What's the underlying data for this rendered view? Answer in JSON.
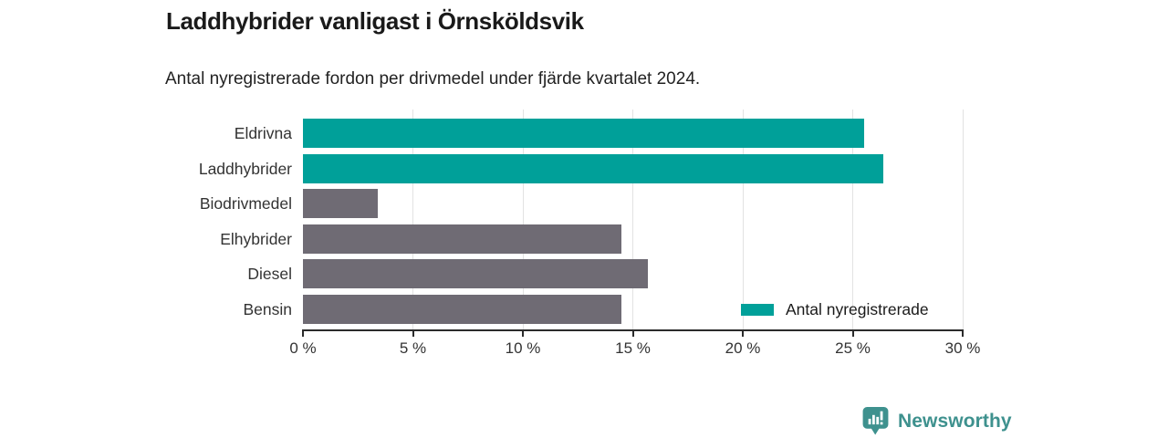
{
  "header": {
    "title": "Laddhybrider vanligast i Örnsköldsvik",
    "subtitle": "Antal nyregistrerade fordon per drivmedel under fjärde kvartalet 2024."
  },
  "chart_data": {
    "type": "bar",
    "orientation": "horizontal",
    "categories": [
      "Eldrivna",
      "Laddhybrider",
      "Biodrivmedel",
      "Elhybrider",
      "Diesel",
      "Bensin"
    ],
    "values": [
      25.5,
      26.4,
      3.4,
      14.5,
      15.7,
      14.5
    ],
    "unit": "%",
    "bar_colors": [
      "#00a099",
      "#00a099",
      "#6f6b74",
      "#6f6b74",
      "#6f6b74",
      "#6f6b74"
    ],
    "xlim": [
      0,
      30
    ],
    "x_ticks": [
      0,
      5,
      10,
      15,
      20,
      25,
      30
    ],
    "x_tick_labels": [
      "0 %",
      "5 %",
      "10 %",
      "15 %",
      "20 %",
      "25 %",
      "30 %"
    ],
    "grid": "vertical-on",
    "legend": {
      "label": "Antal nyregistrerade",
      "color": "#00a099",
      "position": "inside-bottom-right"
    }
  },
  "branding": {
    "name": "Newsworthy",
    "color": "#3e918e",
    "icon": "newsworthy-bubble-barchart-icon"
  },
  "colors": {
    "accent_teal": "#00a099",
    "muted_gray_bar": "#6f6b74",
    "gridline": "#e2e2e2",
    "axis": "#2b2b2b",
    "title_text": "#1a1a1a",
    "body_text": "#333333"
  }
}
